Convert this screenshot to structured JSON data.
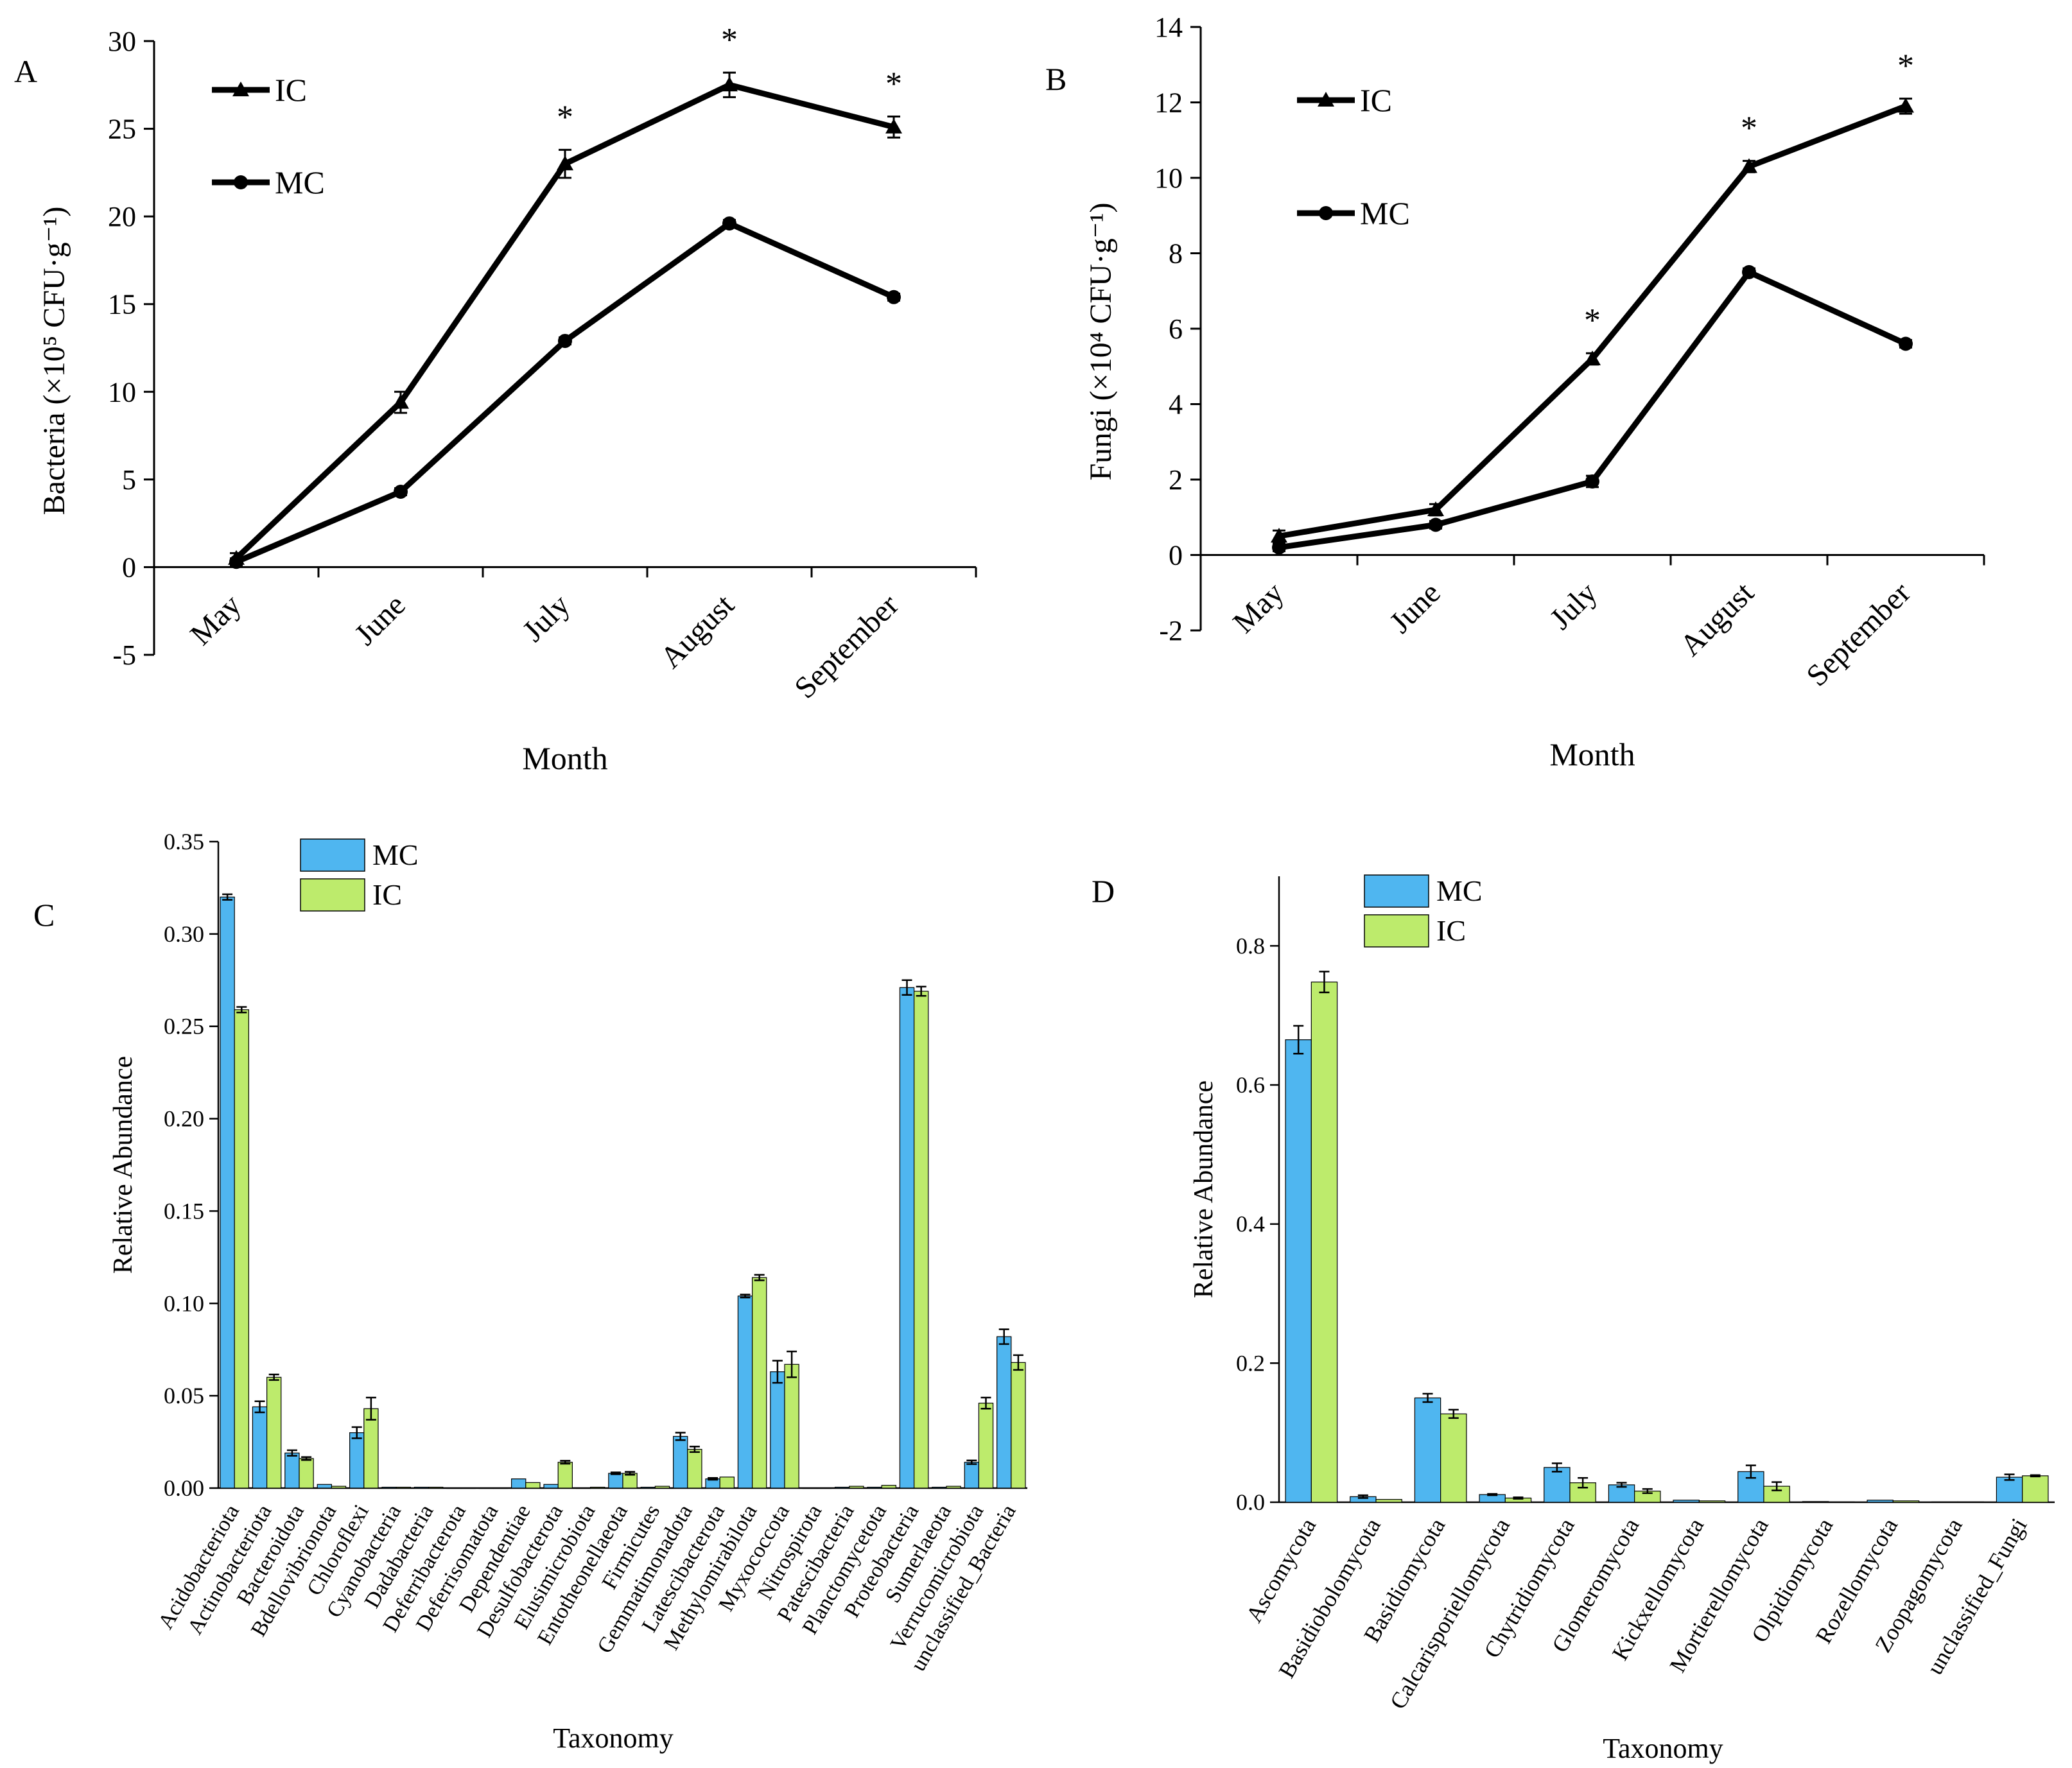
{
  "colors": {
    "mc_bar": "#4FB6F0",
    "ic_bar": "#BDEB6C",
    "line": "#000000",
    "axis": "#000000"
  },
  "chart_data": [
    {
      "panel": "A",
      "type": "line",
      "xlabel": "Month",
      "ylabel": "Bacteria (×10⁵ CFU·g⁻¹)",
      "ylim": [
        -5,
        30
      ],
      "yticks": [
        -5,
        0,
        5,
        10,
        15,
        20,
        25,
        30
      ],
      "categories": [
        "May",
        "June",
        "July",
        "August",
        "September"
      ],
      "series": [
        {
          "name": "IC",
          "marker": "triangle",
          "values": [
            0.5,
            9.4,
            23.0,
            27.5,
            25.1
          ],
          "errors": [
            0.3,
            0.6,
            0.8,
            0.7,
            0.6
          ]
        },
        {
          "name": "MC",
          "marker": "circle",
          "values": [
            0.3,
            4.3,
            12.9,
            19.6,
            15.4
          ],
          "errors": [
            0.2,
            0.2,
            0.2,
            0.2,
            0.2
          ]
        }
      ],
      "significance": [
        {
          "category": "July",
          "label": "*"
        },
        {
          "category": "August",
          "label": "*"
        },
        {
          "category": "September",
          "label": "*"
        }
      ]
    },
    {
      "panel": "B",
      "type": "line",
      "xlabel": "Month",
      "ylabel": "Fungi (×10⁴ CFU·g⁻¹)",
      "ylim": [
        -2,
        14
      ],
      "yticks": [
        -2,
        0,
        2,
        4,
        6,
        8,
        10,
        12,
        14
      ],
      "categories": [
        "May",
        "June",
        "July",
        "August",
        "September"
      ],
      "series": [
        {
          "name": "IC",
          "marker": "triangle",
          "values": [
            0.5,
            1.2,
            5.2,
            10.3,
            11.9
          ],
          "errors": [
            0.15,
            0.15,
            0.15,
            0.15,
            0.2
          ]
        },
        {
          "name": "MC",
          "marker": "circle",
          "values": [
            0.2,
            0.8,
            1.95,
            7.5,
            5.6
          ],
          "errors": [
            0.1,
            0.1,
            0.15,
            0.1,
            0.1
          ]
        }
      ],
      "significance": [
        {
          "category": "July",
          "label": "*"
        },
        {
          "category": "August",
          "label": "*"
        },
        {
          "category": "September",
          "label": "*"
        }
      ]
    },
    {
      "panel": "C",
      "type": "bar",
      "xlabel": "Taxonomy",
      "ylabel": "Relative Abundance",
      "ylim": [
        0,
        0.35
      ],
      "yticks": [
        "0.00",
        "0.05",
        "0.10",
        "0.15",
        "0.20",
        "0.25",
        "0.30",
        "0.35"
      ],
      "categories": [
        "Acidobacteriota",
        "Actinobacteriota",
        "Bacteroidota",
        "Bdellovibrionota",
        "Chloroflexi",
        "Cyanobacteria",
        "Dadabacteria",
        "Deferribacterota",
        "Deferrisomatota",
        "Dependentiae",
        "Desulfobacterota",
        "Elusimicrobiota",
        "Entotheonellaeota",
        "Firmicutes",
        "Gemmatimonadota",
        "Latescibacterota",
        "Methylomirabilota",
        "Myxococcota",
        "Nitrospirota",
        "Patescibacteria",
        "Planctomycetota",
        "Proteobacteria",
        "Sumerlaeota",
        "Verrucomicrobiota",
        "unclassified_Bacteria"
      ],
      "series": [
        {
          "name": "MC",
          "values": [
            0.32,
            0.044,
            0.019,
            0.002,
            0.03,
            0.0005,
            0.0005,
            0.0,
            0.0,
            0.005,
            0.002,
            0.0,
            0.008,
            0.0005,
            0.028,
            0.005,
            0.104,
            0.063,
            0.0,
            0.0005,
            0.0005,
            0.271,
            0.0005,
            0.014,
            0.082
          ],
          "errors": [
            0.0015,
            0.003,
            0.0015,
            0.0,
            0.003,
            0.0,
            0.0,
            0.0,
            0.0,
            0.0,
            0.0,
            0.0,
            0.0005,
            0.0,
            0.002,
            0.0005,
            0.0008,
            0.006,
            0.0,
            0.0,
            0.0,
            0.004,
            0.0,
            0.001,
            0.004
          ]
        },
        {
          "name": "IC",
          "values": [
            0.259,
            0.06,
            0.016,
            0.001,
            0.043,
            0.0005,
            0.0005,
            0.0,
            0.0,
            0.003,
            0.014,
            0.0005,
            0.008,
            0.001,
            0.021,
            0.006,
            0.114,
            0.067,
            0.0,
            0.001,
            0.0015,
            0.269,
            0.001,
            0.046,
            0.068
          ],
          "errors": [
            0.0015,
            0.0015,
            0.0008,
            0.0,
            0.006,
            0.0,
            0.0,
            0.0,
            0.0,
            0.0,
            0.0008,
            0.0,
            0.0008,
            0.0,
            0.0015,
            0.0,
            0.0015,
            0.007,
            0.0,
            0.0,
            0.0,
            0.0025,
            0.0,
            0.003,
            0.004
          ]
        }
      ]
    },
    {
      "panel": "D",
      "type": "bar",
      "xlabel": "Taxonomy",
      "ylabel": "Relative Abundance",
      "ylim": [
        0,
        0.9
      ],
      "yticks": [
        "0.0",
        "0.2",
        "0.4",
        "0.6",
        "0.8"
      ],
      "categories": [
        "Ascomycota",
        "Basidiobolomycota",
        "Basidiomycota",
        "Calcarisporiellomycota",
        "Chytridiomycota",
        "Glomeromycota",
        "Kickxellomycota",
        "Mortierellomycota",
        "Olpidiomycota",
        "Rozellomycota",
        "Zoopagomycota",
        "unclassified_Fungi"
      ],
      "series": [
        {
          "name": "MC",
          "values": [
            0.665,
            0.008,
            0.15,
            0.011,
            0.05,
            0.025,
            0.003,
            0.044,
            0.001,
            0.003,
            0.0005,
            0.036
          ],
          "errors": [
            0.02,
            0.002,
            0.006,
            0.001,
            0.006,
            0.003,
            0.0,
            0.009,
            0.0,
            0.0,
            0.0,
            0.004
          ]
        },
        {
          "name": "IC",
          "values": [
            0.748,
            0.004,
            0.127,
            0.006,
            0.028,
            0.016,
            0.002,
            0.023,
            0.0005,
            0.002,
            0.0005,
            0.038
          ],
          "errors": [
            0.015,
            0.0,
            0.006,
            0.001,
            0.007,
            0.003,
            0.0,
            0.006,
            0.0,
            0.0,
            0.0,
            0.001
          ]
        }
      ]
    }
  ]
}
